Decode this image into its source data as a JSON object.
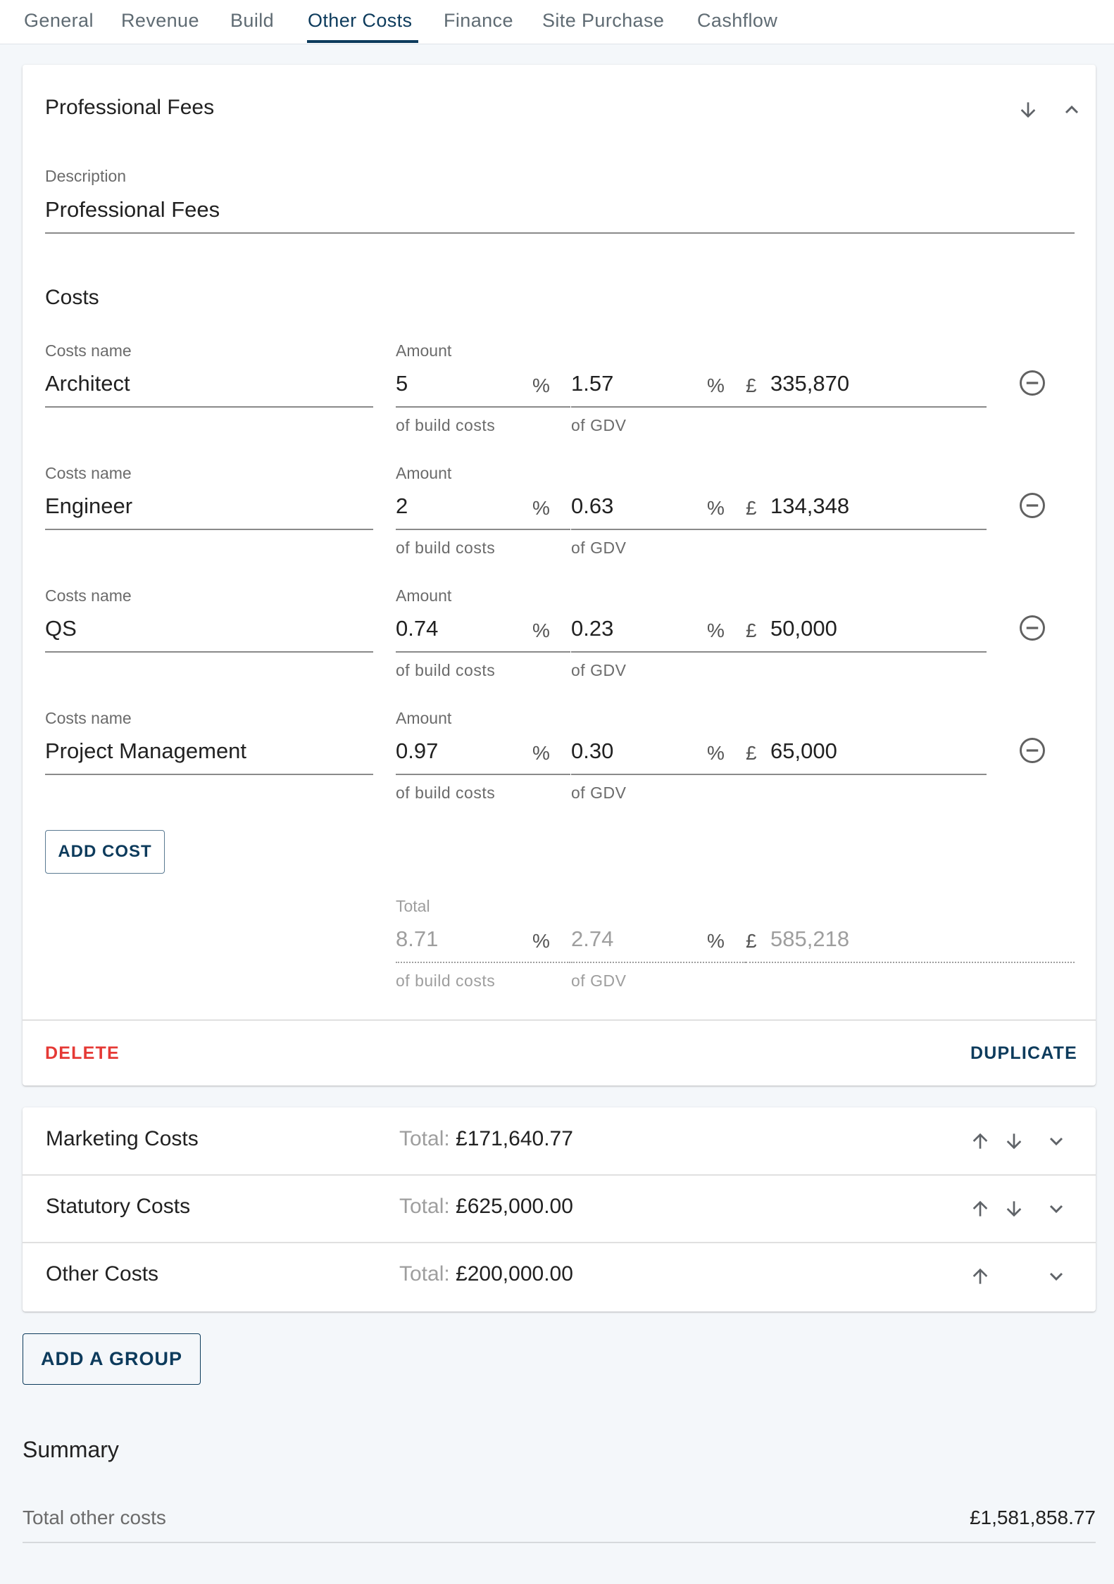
{
  "tabs": [
    "General",
    "Revenue",
    "Build",
    "Other Costs",
    "Finance",
    "Site Purchase",
    "Cashflow"
  ],
  "active_tab": "Other Costs",
  "group": {
    "title": "Professional Fees",
    "description_label": "Description",
    "description_value": "Professional Fees",
    "costs_heading": "Costs",
    "name_label": "Costs name",
    "amount_label": "Amount",
    "pct_unit": "%",
    "currency": "£",
    "build_sub": "of build costs",
    "gdv_sub": "of GDV",
    "rows": [
      {
        "name": "Architect",
        "pct_build": "5",
        "pct_gdv": "1.57",
        "amount": "335,870"
      },
      {
        "name": "Engineer",
        "pct_build": "2",
        "pct_gdv": "0.63",
        "amount": "134,348"
      },
      {
        "name": "QS",
        "pct_build": "0.74",
        "pct_gdv": "0.23",
        "amount": "50,000"
      },
      {
        "name": "Project Management",
        "pct_build": "0.97",
        "pct_gdv": "0.30",
        "amount": "65,000"
      }
    ],
    "add_cost_label": "ADD COST",
    "total_label": "Total",
    "total": {
      "pct_build": "8.71",
      "pct_gdv": "2.74",
      "amount": "585,218"
    },
    "delete_label": "DELETE",
    "duplicate_label": "DUPLICATE"
  },
  "collapsed_groups": [
    {
      "name": "Marketing Costs",
      "total_prefix": "Total:",
      "total_value": "£171,640.77"
    },
    {
      "name": "Statutory Costs",
      "total_prefix": "Total:",
      "total_value": "£625,000.00"
    },
    {
      "name": "Other Costs",
      "total_prefix": "Total:",
      "total_value": "£200,000.00"
    }
  ],
  "add_group_label": "ADD A GROUP",
  "summary": {
    "heading": "Summary",
    "total_label": "Total other costs",
    "total_value": "£1,581,858.77"
  },
  "colors": {
    "accent": "#0d3b5c",
    "danger": "#e53935",
    "muted": "#9e9e9e"
  },
  "icons": [
    "arrow-down-icon",
    "chevron-up-icon",
    "arrow-up-icon",
    "chevron-down-icon",
    "remove-circle-icon"
  ]
}
